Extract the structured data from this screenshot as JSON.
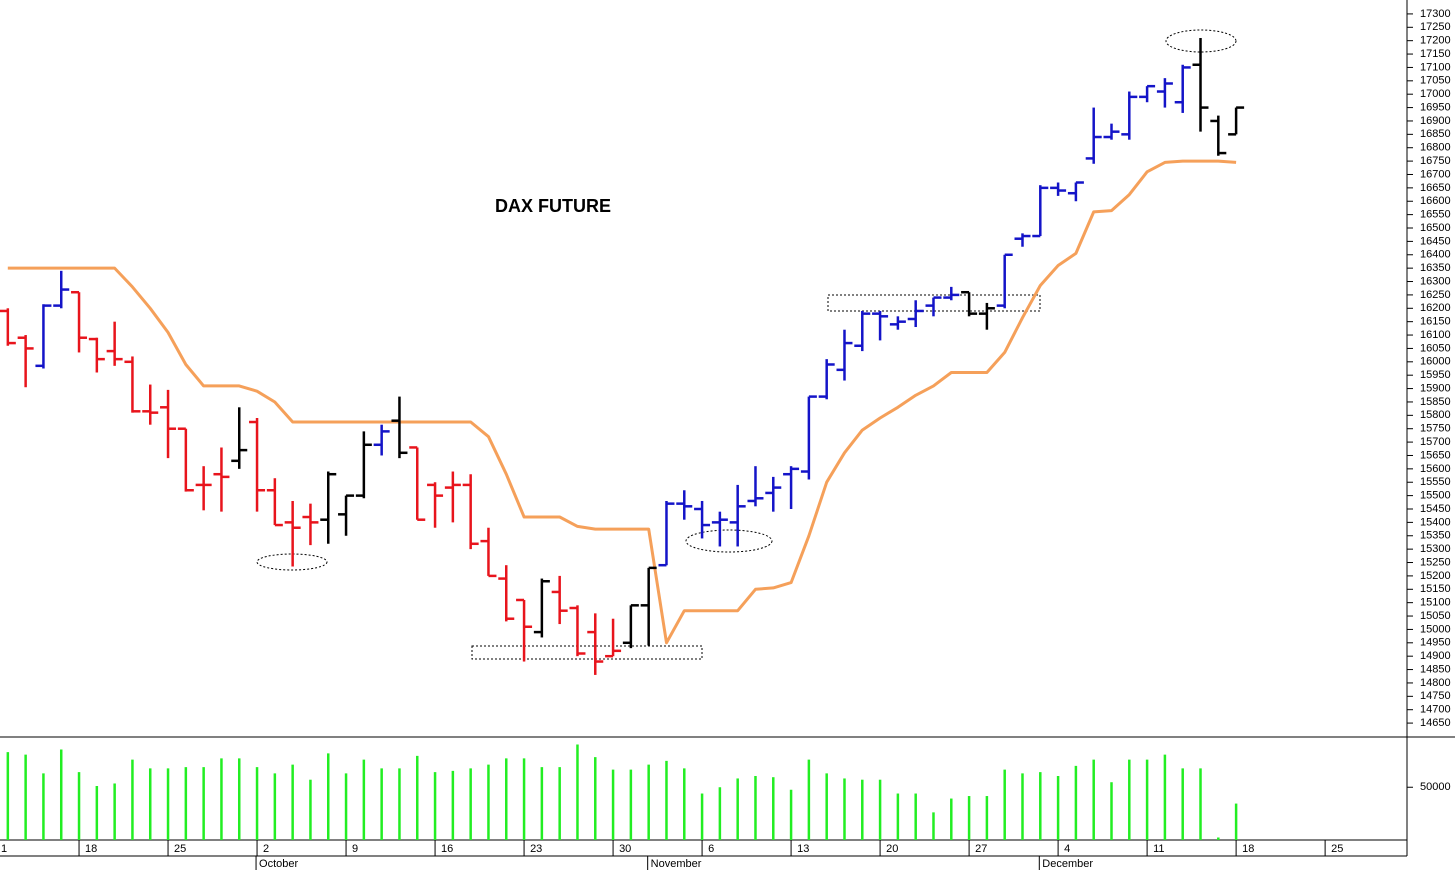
{
  "chart_data": {
    "type": "ohlc",
    "title": "DAX FUTURE",
    "x": [
      1,
      2,
      3,
      4,
      5,
      6,
      7,
      8,
      9,
      10,
      11,
      12,
      13,
      14,
      15,
      16,
      17,
      18,
      19,
      20,
      21,
      22,
      23,
      24,
      25,
      26,
      27,
      28,
      29,
      30,
      31,
      32,
      33,
      34,
      35,
      36,
      37,
      38,
      39,
      40,
      41,
      42,
      43,
      44,
      45,
      46,
      47,
      48,
      49,
      50,
      51,
      52,
      53,
      54,
      55,
      56,
      57,
      58,
      59,
      60,
      61,
      62,
      63,
      64,
      65,
      66,
      67,
      68,
      69,
      70
    ],
    "open": [
      16190,
      16090,
      15985,
      16210,
      16260,
      16085,
      16040,
      16000,
      15815,
      15830,
      15750,
      15540,
      15580,
      15630,
      15775,
      15520,
      15400,
      15420,
      15410,
      15430,
      15500,
      15690,
      15780,
      15680,
      15540,
      15530,
      15540,
      15330,
      15190,
      15110,
      14990,
      15140,
      15080,
      14990,
      14900,
      14950,
      15090,
      15240,
      15470,
      15450,
      15400,
      15400,
      15480,
      15510,
      15580,
      15590,
      15870,
      15970,
      16060,
      16180,
      16140,
      16160,
      16210,
      16240,
      16260,
      16180,
      16210,
      16460,
      16470,
      16650,
      16630,
      16760,
      16840,
      16850,
      16990,
      17010,
      16970,
      17110,
      16900,
      16850
    ],
    "high": [
      16200,
      16100,
      16215,
      16340,
      16260,
      16090,
      16150,
      16020,
      15915,
      15895,
      15750,
      15610,
      15680,
      15830,
      15790,
      15565,
      15480,
      15470,
      15590,
      15500,
      15740,
      15765,
      15870,
      15680,
      15550,
      15590,
      15580,
      15380,
      15240,
      15110,
      15190,
      15200,
      15090,
      15060,
      15040,
      15090,
      15230,
      15480,
      15520,
      15480,
      15440,
      15540,
      15610,
      15570,
      15610,
      15870,
      16010,
      16120,
      16190,
      16190,
      16170,
      16230,
      16240,
      16280,
      16260,
      16220,
      16400,
      16480,
      16660,
      16670,
      16670,
      16950,
      16890,
      17010,
      17030,
      17060,
      17110,
      17210,
      16920,
      16950
    ],
    "low": [
      16060,
      15905,
      15975,
      16200,
      16035,
      15960,
      15985,
      15810,
      15765,
      15640,
      15515,
      15445,
      15440,
      15600,
      15440,
      15390,
      15235,
      15315,
      15320,
      15350,
      15490,
      15650,
      15640,
      15410,
      15380,
      15400,
      15300,
      15200,
      15030,
      14880,
      14970,
      15020,
      14900,
      14830,
      14900,
      14930,
      14940,
      15240,
      15410,
      15340,
      15310,
      15310,
      15460,
      15440,
      15450,
      15560,
      15860,
      15930,
      16040,
      16080,
      16120,
      16130,
      16170,
      16230,
      16170,
      16120,
      16200,
      16430,
      16470,
      16620,
      16600,
      16740,
      16830,
      16830,
      16970,
      16950,
      16930,
      16860,
      16770,
      16850
    ],
    "close": [
      16070,
      16050,
      16210,
      16270,
      16090,
      16010,
      16010,
      15815,
      15810,
      15750,
      15520,
      15540,
      15570,
      15670,
      15520,
      15390,
      15380,
      15400,
      15580,
      15500,
      15690,
      15740,
      15660,
      15410,
      15500,
      15540,
      15320,
      15200,
      15040,
      15010,
      15180,
      15070,
      14910,
      14880,
      14920,
      15090,
      15230,
      15470,
      15460,
      15390,
      15410,
      15460,
      15490,
      15530,
      15600,
      15870,
      15990,
      16070,
      16180,
      16170,
      16150,
      16190,
      16240,
      16250,
      16180,
      16200,
      16400,
      16470,
      16650,
      16640,
      16670,
      16840,
      16860,
      16990,
      17030,
      17040,
      17100,
      16950,
      16780,
      16950
    ],
    "bar_colors": [
      "#e8141c",
      "#e8141c",
      "#1414c8",
      "#1414c8",
      "#e8141c",
      "#e8141c",
      "#e8141c",
      "#e8141c",
      "#e8141c",
      "#e8141c",
      "#e8141c",
      "#e8141c",
      "#e8141c",
      "#000000",
      "#e8141c",
      "#e8141c",
      "#e8141c",
      "#e8141c",
      "#000000",
      "#000000",
      "#000000",
      "#1414c8",
      "#000000",
      "#e8141c",
      "#e8141c",
      "#e8141c",
      "#e8141c",
      "#e8141c",
      "#e8141c",
      "#e8141c",
      "#000000",
      "#e8141c",
      "#e8141c",
      "#e8141c",
      "#e8141c",
      "#000000",
      "#000000",
      "#1414c8",
      "#1414c8",
      "#1414c8",
      "#1414c8",
      "#1414c8",
      "#1414c8",
      "#1414c8",
      "#1414c8",
      "#1414c8",
      "#1414c8",
      "#1414c8",
      "#1414c8",
      "#1414c8",
      "#1414c8",
      "#1414c8",
      "#1414c8",
      "#1414c8",
      "#000000",
      "#000000",
      "#1414c8",
      "#1414c8",
      "#1414c8",
      "#1414c8",
      "#1414c8",
      "#1414c8",
      "#1414c8",
      "#1414c8",
      "#1414c8",
      "#1414c8",
      "#1414c8",
      "#000000",
      "#000000",
      "#000000"
    ],
    "trail": {
      "color": "#f5a05a",
      "values": [
        16350,
        16350,
        16350,
        16350,
        16350,
        16350,
        16350,
        16280,
        16200,
        16110,
        15990,
        15910,
        15910,
        15910,
        15890,
        15850,
        15775,
        15775,
        15775,
        15775,
        15775,
        15775,
        15775,
        15775,
        15775,
        15775,
        15775,
        15720,
        15580,
        15420,
        15420,
        15420,
        15385,
        15375,
        15375,
        15375,
        15375,
        14950,
        15070,
        15070,
        15070,
        15070,
        15150,
        15155,
        15175,
        15350,
        15550,
        15660,
        15745,
        15790,
        15830,
        15875,
        15910,
        15960,
        15960,
        15960,
        16035,
        16165,
        16285,
        16360,
        16405,
        16560,
        16565,
        16625,
        16710,
        16745,
        16750,
        16750,
        16750,
        16745
      ]
    },
    "volume": {
      "color": "#22ee22",
      "values": [
        64000,
        63000,
        55500,
        65000,
        56000,
        50500,
        51500,
        61000,
        57500,
        57500,
        58000,
        58000,
        61500,
        61500,
        58000,
        55500,
        59000,
        53000,
        63500,
        55500,
        61000,
        57500,
        57500,
        62500,
        56000,
        56500,
        57500,
        59000,
        61500,
        61500,
        58000,
        58000,
        67000,
        62000,
        57000,
        57000,
        59000,
        60500,
        57500,
        47500,
        50000,
        53500,
        54500,
        54000,
        49000,
        61000,
        55500,
        53500,
        53000,
        53000,
        47500,
        47500,
        40000,
        45500,
        46500,
        46500,
        57000,
        55500,
        56000,
        54500,
        58500,
        61000,
        52000,
        61000,
        61000,
        63000,
        57500,
        57500,
        30000,
        43500
      ],
      "ylim": [
        29000,
        70000
      ],
      "yticks": [
        50000
      ]
    },
    "xlim": [
      0.56,
      79.6
    ],
    "ylim": [
      14598,
      17352
    ],
    "yticks": [
      14650,
      14700,
      14750,
      14800,
      14850,
      14900,
      14950,
      15000,
      15050,
      15100,
      15150,
      15200,
      15250,
      15300,
      15350,
      15400,
      15450,
      15500,
      15550,
      15600,
      15650,
      15700,
      15750,
      15800,
      15850,
      15900,
      15950,
      16000,
      16050,
      16100,
      16150,
      16200,
      16250,
      16300,
      16350,
      16400,
      16450,
      16500,
      16550,
      16600,
      16650,
      16700,
      16750,
      16800,
      16850,
      16900,
      16950,
      17000,
      17050,
      17100,
      17150,
      17200,
      17250,
      17300
    ],
    "xticks": [
      {
        "value": 0,
        "label": "1"
      },
      {
        "value": 5,
        "label": "18"
      },
      {
        "value": 10,
        "label": "25"
      },
      {
        "value": 15,
        "label": "2"
      },
      {
        "value": 20,
        "label": "9"
      },
      {
        "value": 25,
        "label": "16"
      },
      {
        "value": 30,
        "label": "23"
      },
      {
        "value": 35,
        "label": "30"
      },
      {
        "value": 40,
        "label": "6"
      },
      {
        "value": 45,
        "label": "13"
      },
      {
        "value": 50,
        "label": "20"
      },
      {
        "value": 55,
        "label": "27"
      },
      {
        "value": 60,
        "label": "4"
      },
      {
        "value": 65,
        "label": "11"
      },
      {
        "value": 70,
        "label": "18"
      },
      {
        "value": 75,
        "label": "25"
      }
    ],
    "month_labels": [
      {
        "value": 15,
        "label": "October"
      },
      {
        "value": 37,
        "label": "November"
      },
      {
        "value": 59,
        "label": "December"
      }
    ]
  }
}
